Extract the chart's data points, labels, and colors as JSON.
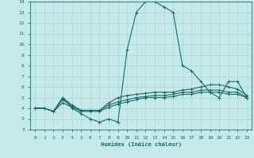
{
  "bg_color": "#c5e8e8",
  "line_color": "#1a6b6b",
  "grid_color": "#a8d8d8",
  "xlabel": "Humidex (Indice chaleur)",
  "xlim": [
    -0.5,
    23.5
  ],
  "ylim": [
    2,
    14
  ],
  "yticks": [
    2,
    3,
    4,
    5,
    6,
    7,
    8,
    9,
    10,
    11,
    12,
    13,
    14
  ],
  "xticks": [
    0,
    1,
    2,
    3,
    4,
    5,
    6,
    7,
    8,
    9,
    10,
    11,
    12,
    13,
    14,
    15,
    16,
    17,
    18,
    19,
    20,
    21,
    22,
    23
  ],
  "series": [
    {
      "x": [
        0,
        1,
        2,
        3,
        4,
        5,
        6,
        7,
        8,
        9,
        10,
        11,
        12,
        13,
        14,
        15,
        16,
        17,
        18,
        19,
        20,
        21,
        22,
        23
      ],
      "y": [
        4.0,
        4.0,
        3.7,
        5.0,
        4.0,
        3.5,
        3.0,
        2.7,
        3.0,
        2.7,
        9.5,
        13.0,
        14.0,
        14.0,
        13.5,
        13.0,
        8.0,
        7.5,
        6.5,
        5.5,
        5.0,
        6.5,
        6.5,
        5.0
      ]
    },
    {
      "x": [
        0,
        1,
        2,
        3,
        4,
        5,
        6,
        7,
        8,
        9,
        10,
        11,
        12,
        13,
        14,
        15,
        16,
        17,
        18,
        19,
        20,
        21,
        22,
        23
      ],
      "y": [
        4.0,
        4.0,
        3.7,
        5.0,
        4.3,
        3.8,
        3.8,
        3.8,
        4.5,
        5.0,
        5.2,
        5.3,
        5.4,
        5.5,
        5.5,
        5.5,
        5.7,
        5.8,
        6.0,
        6.2,
        6.2,
        6.0,
        5.8,
        5.2
      ]
    },
    {
      "x": [
        0,
        1,
        2,
        3,
        4,
        5,
        6,
        7,
        8,
        9,
        10,
        11,
        12,
        13,
        14,
        15,
        16,
        17,
        18,
        19,
        20,
        21,
        22,
        23
      ],
      "y": [
        4.0,
        4.0,
        3.7,
        4.8,
        4.2,
        3.8,
        3.8,
        3.8,
        4.3,
        4.6,
        4.8,
        5.0,
        5.1,
        5.2,
        5.2,
        5.3,
        5.5,
        5.5,
        5.7,
        5.7,
        5.7,
        5.5,
        5.5,
        5.0
      ]
    },
    {
      "x": [
        0,
        1,
        2,
        3,
        4,
        5,
        6,
        7,
        8,
        9,
        10,
        11,
        12,
        13,
        14,
        15,
        16,
        17,
        18,
        19,
        20,
        21,
        22,
        23
      ],
      "y": [
        4.0,
        4.0,
        3.7,
        4.5,
        4.1,
        3.7,
        3.7,
        3.7,
        4.1,
        4.4,
        4.6,
        4.8,
        5.0,
        5.0,
        5.0,
        5.1,
        5.3,
        5.3,
        5.5,
        5.5,
        5.5,
        5.3,
        5.3,
        5.0
      ]
    }
  ]
}
